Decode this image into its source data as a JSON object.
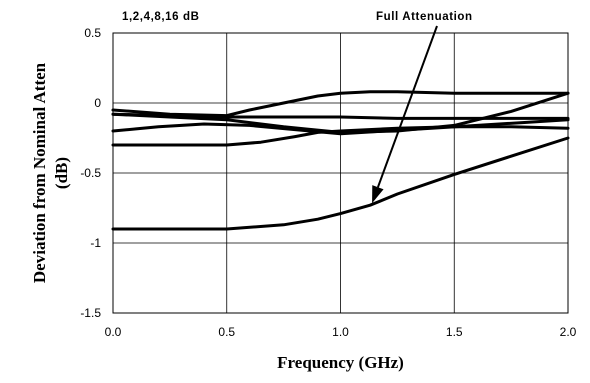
{
  "chart_data": {
    "type": "line",
    "xlabel": "Frequency (GHz)",
    "ylabel_line1": "Deviation from Nominal Atten",
    "ylabel_line2": "(dB)",
    "xlim": [
      0,
      2
    ],
    "ylim": [
      -1.5,
      0.5
    ],
    "x_ticks": [
      "0.0",
      "0.5",
      "1.0",
      "1.5",
      "2.0"
    ],
    "y_ticks": [
      "0.5",
      "0",
      "-0.5",
      "-1",
      "-1.5"
    ],
    "x_tick_values": [
      0,
      0.5,
      1,
      1.5,
      2
    ],
    "y_tick_values": [
      0.5,
      0,
      -0.5,
      -1,
      -1.5
    ],
    "grid": true,
    "annotations": {
      "label_left": "1,2,4,8,16 dB",
      "label_right": "Full Attenuation",
      "arrow_points_to": [
        1.13,
        -0.73
      ]
    },
    "series": [
      {
        "x": [
          0,
          0.25,
          0.5,
          0.6,
          0.75,
          0.9,
          1.0,
          1.13,
          1.25,
          1.5,
          1.75,
          2.0
        ],
        "y": [
          -0.05,
          -0.08,
          -0.09,
          -0.05,
          0.0,
          0.05,
          0.07,
          0.08,
          0.08,
          0.07,
          0.07,
          0.07
        ]
      },
      {
        "x": [
          0,
          0.25,
          0.5,
          0.75,
          1.0,
          1.25,
          1.5,
          1.75,
          2.0
        ],
        "y": [
          -0.08,
          -0.09,
          -0.1,
          -0.1,
          -0.1,
          -0.11,
          -0.11,
          -0.11,
          -0.11
        ]
      },
      {
        "x": [
          0,
          0.25,
          0.5,
          0.75,
          1.0,
          1.25,
          1.5,
          1.75,
          2.0
        ],
        "y": [
          -0.08,
          -0.1,
          -0.12,
          -0.17,
          -0.21,
          -0.2,
          -0.16,
          -0.06,
          0.07
        ]
      },
      {
        "x": [
          0,
          0.2,
          0.4,
          0.6,
          0.8,
          1.0,
          1.2,
          1.4,
          1.6,
          1.8,
          2.0
        ],
        "y": [
          -0.2,
          -0.17,
          -0.15,
          -0.16,
          -0.19,
          -0.22,
          -0.2,
          -0.18,
          -0.16,
          -0.14,
          -0.12
        ]
      },
      {
        "x": [
          0,
          0.25,
          0.5,
          0.65,
          0.8,
          0.9,
          1.0,
          1.25,
          1.5,
          1.75,
          2.0
        ],
        "y": [
          -0.3,
          -0.3,
          -0.3,
          -0.28,
          -0.24,
          -0.21,
          -0.2,
          -0.18,
          -0.17,
          -0.17,
          -0.18
        ]
      },
      {
        "x": [
          0,
          0.25,
          0.5,
          0.75,
          0.9,
          1.0,
          1.13,
          1.25,
          1.5,
          1.75,
          2.0
        ],
        "y": [
          -0.9,
          -0.9,
          -0.9,
          -0.87,
          -0.83,
          -0.79,
          -0.73,
          -0.65,
          -0.51,
          -0.38,
          -0.25
        ]
      }
    ]
  }
}
